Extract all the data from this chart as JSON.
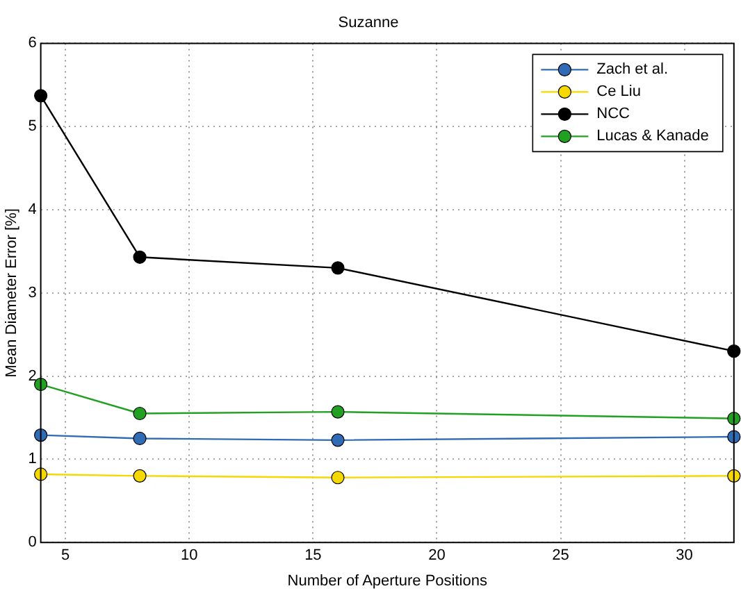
{
  "chart_data": {
    "type": "line",
    "title": "Suzanne",
    "xlabel": "Number of Aperture Positions",
    "ylabel": "Mean Diameter Error [%]",
    "x": [
      4,
      8,
      16,
      32
    ],
    "series": [
      {
        "name": "Zach et al.",
        "color": "#2f6cb5",
        "values": [
          1.29,
          1.25,
          1.23,
          1.27
        ]
      },
      {
        "name": "Ce Liu",
        "color": "#f5d800",
        "values": [
          0.82,
          0.8,
          0.78,
          0.8
        ]
      },
      {
        "name": "NCC",
        "color": "#000000",
        "values": [
          5.37,
          3.43,
          3.3,
          2.3
        ]
      },
      {
        "name": "Lucas & Kanade",
        "color": "#22a022",
        "values": [
          1.9,
          1.55,
          1.57,
          1.49
        ]
      }
    ],
    "xlim": [
      4,
      32
    ],
    "xticks": [
      5,
      10,
      15,
      20,
      25,
      30
    ],
    "ylim": [
      0,
      6
    ],
    "yticks": [
      0,
      1,
      2,
      3,
      4,
      5,
      6
    ],
    "grid": true,
    "legend": "top right",
    "marker": "circle",
    "line_style": "solid"
  }
}
